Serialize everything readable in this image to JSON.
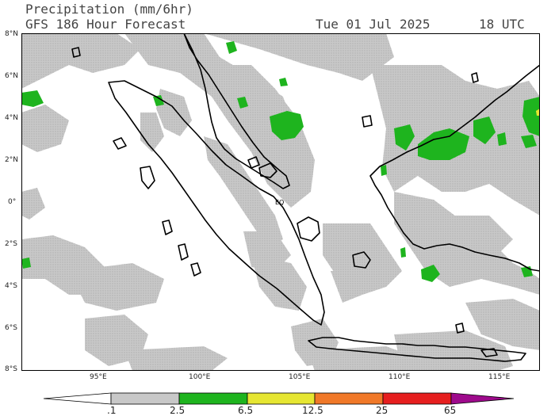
{
  "header": {
    "title": "Precipitation (mm/6hr)",
    "model": "GFS 186 Hour Forecast",
    "date": "Tue 01 Jul 2025",
    "time": "18 UTC"
  },
  "map": {
    "lat_labels": [
      "8°N",
      "6°N",
      "4°N",
      "2°N",
      "0°",
      "2°S",
      "4°S",
      "6°S",
      "8°S"
    ],
    "lon_labels": [
      "95°E",
      "100°E",
      "105°E",
      "110°E",
      "115°E"
    ],
    "equator_label": "EQ",
    "lat_range": [
      -8,
      8
    ],
    "lon_range": [
      93,
      117
    ]
  },
  "colorbar": {
    "labels": [
      ".1",
      "2.5",
      "6.5",
      "12.5",
      "25",
      "65"
    ],
    "colors": [
      "#c8c8c8",
      "#c8c8c8",
      "#1eb41e",
      "#e6e632",
      "#f07828",
      "#e61e1e",
      "#9e0a8c"
    ]
  },
  "colors": {
    "precip_light": "#c8c8c8",
    "precip_green": "#1eb41e",
    "precip_yellow": "#e6e632",
    "coastline": "#000000"
  }
}
